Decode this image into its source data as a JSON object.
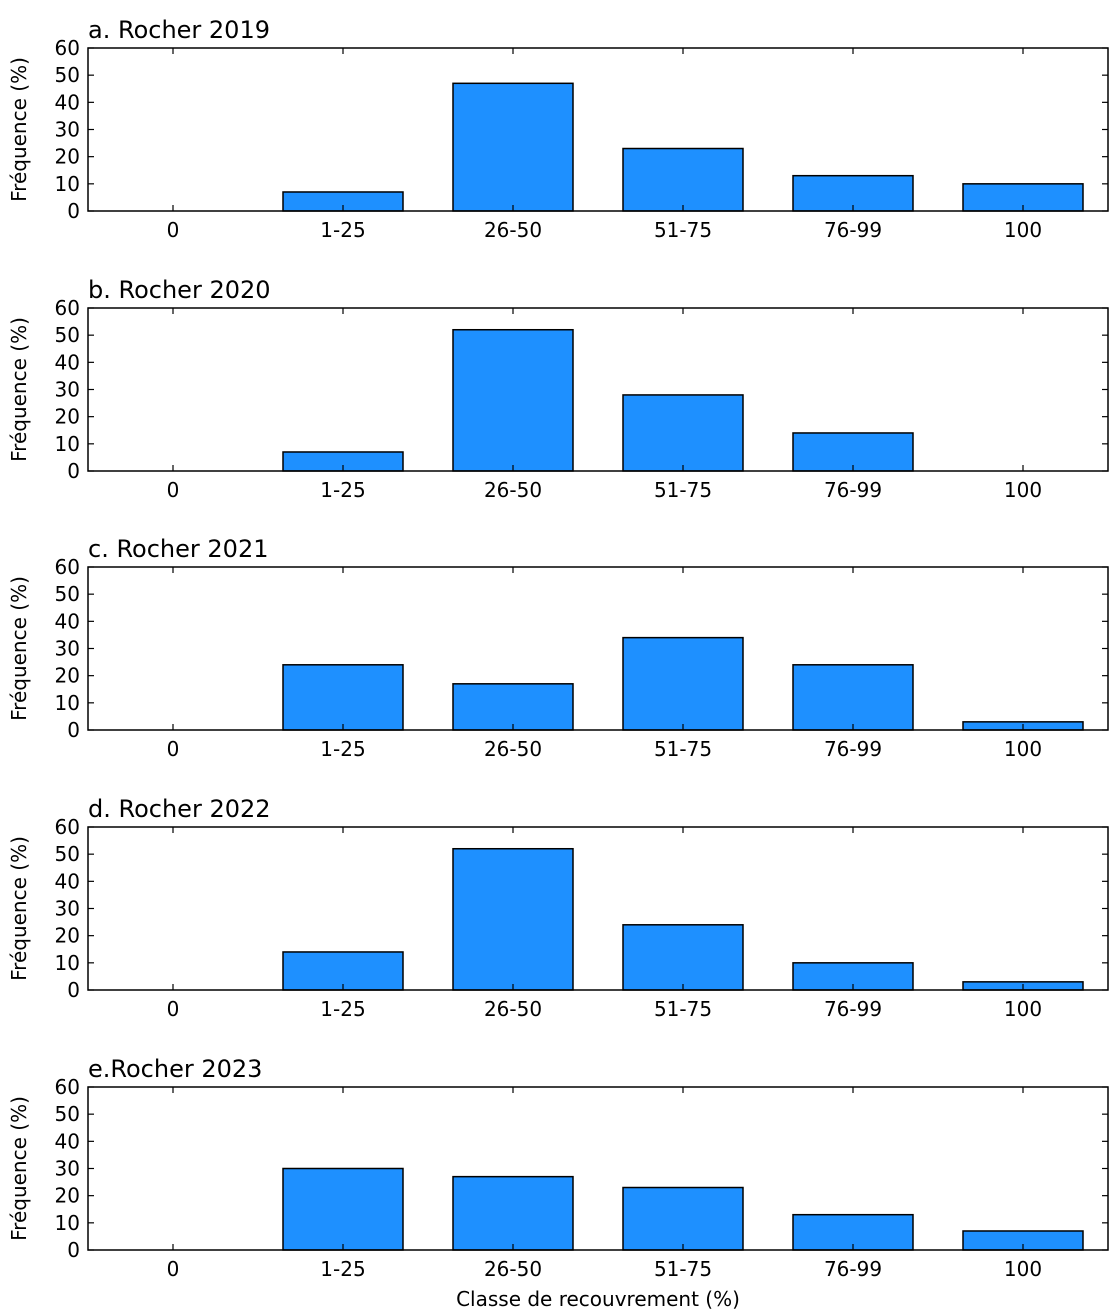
{
  "chart_data": [
    {
      "type": "bar",
      "title": "a. Rocher 2019",
      "ylabel": "Fréquence (%)",
      "xlabel": "",
      "categories": [
        "0",
        "1-25",
        "26-50",
        "51-75",
        "76-99",
        "100"
      ],
      "values": [
        0,
        7,
        47,
        23,
        13,
        10
      ],
      "ylim": [
        0,
        60
      ],
      "yticks": [
        0,
        10,
        20,
        30,
        40,
        50,
        60
      ],
      "grid": false,
      "bar_color": "#1e90ff"
    },
    {
      "type": "bar",
      "title": "b. Rocher 2020",
      "ylabel": "Fréquence (%)",
      "xlabel": "",
      "categories": [
        "0",
        "1-25",
        "26-50",
        "51-75",
        "76-99",
        "100"
      ],
      "values": [
        0,
        7,
        52,
        28,
        14,
        0
      ],
      "ylim": [
        0,
        60
      ],
      "yticks": [
        0,
        10,
        20,
        30,
        40,
        50,
        60
      ],
      "grid": false,
      "bar_color": "#1e90ff"
    },
    {
      "type": "bar",
      "title": "c. Rocher 2021",
      "ylabel": "Fréquence (%)",
      "xlabel": "",
      "categories": [
        "0",
        "1-25",
        "26-50",
        "51-75",
        "76-99",
        "100"
      ],
      "values": [
        0,
        24,
        17,
        34,
        24,
        3
      ],
      "ylim": [
        0,
        60
      ],
      "yticks": [
        0,
        10,
        20,
        30,
        40,
        50,
        60
      ],
      "grid": false,
      "bar_color": "#1e90ff"
    },
    {
      "type": "bar",
      "title": "d. Rocher 2022",
      "ylabel": "Fréquence (%)",
      "xlabel": "",
      "categories": [
        "0",
        "1-25",
        "26-50",
        "51-75",
        "76-99",
        "100"
      ],
      "values": [
        0,
        14,
        52,
        24,
        10,
        3
      ],
      "ylim": [
        0,
        60
      ],
      "yticks": [
        0,
        10,
        20,
        30,
        40,
        50,
        60
      ],
      "grid": false,
      "bar_color": "#1e90ff"
    },
    {
      "type": "bar",
      "title": "e.Rocher 2023",
      "ylabel": "Fréquence (%)",
      "xlabel": "Classe de recouvrement (%)",
      "categories": [
        "0",
        "1-25",
        "26-50",
        "51-75",
        "76-99",
        "100"
      ],
      "values": [
        0,
        30,
        27,
        23,
        13,
        7
      ],
      "ylim": [
        0,
        60
      ],
      "yticks": [
        0,
        10,
        20,
        30,
        40,
        50,
        60
      ],
      "grid": false,
      "bar_color": "#1e90ff"
    }
  ]
}
